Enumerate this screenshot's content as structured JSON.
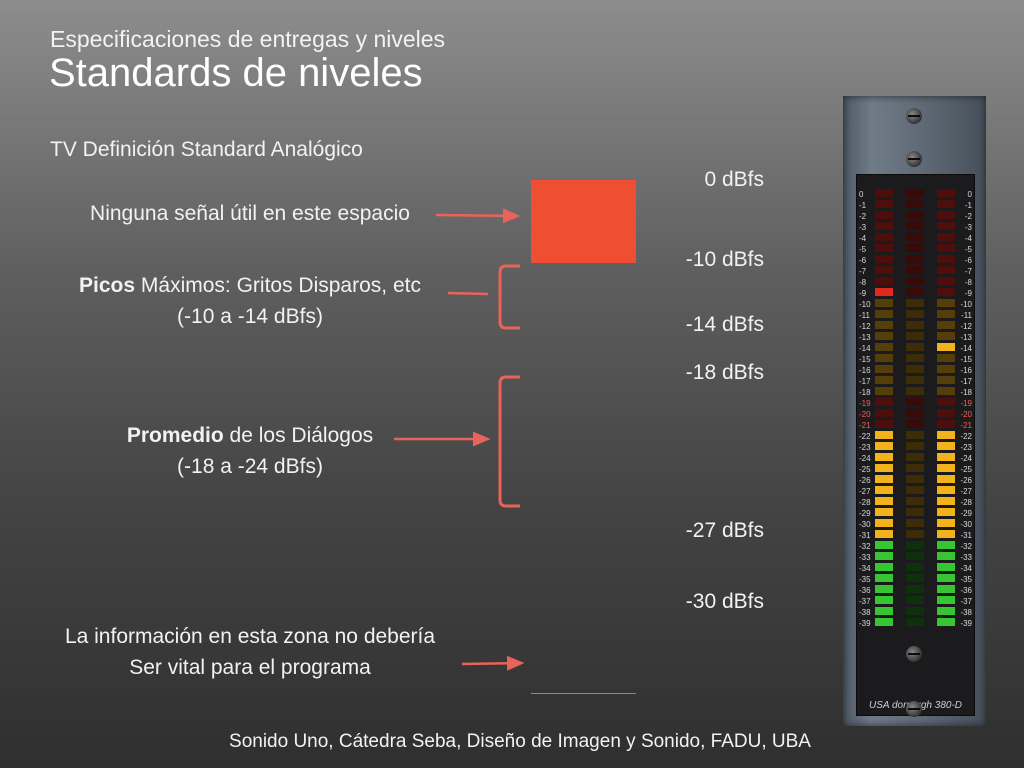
{
  "header": {
    "subtitle": "Especificaciones de entregas y niveles",
    "title": "Standards de niveles"
  },
  "section_label": "TV Definición Standard Analógico",
  "annotations": {
    "no_signal": "Ninguna señal útil en este espacio",
    "peaks_bold": "Picos",
    "peaks_rest": " Máximos: Gritos Disparos, etc",
    "peaks_range": "(-10 a -14 dBfs)",
    "dialog_bold": "Promedio",
    "dialog_rest": " de los Diálogos",
    "dialog_range": "(-18 a -24 dBfs)",
    "low_zone_line1": "La información en esta zona no debería",
    "low_zone_line2": "Ser vital para el programa"
  },
  "levels": {
    "l0": "0 dBfs",
    "l10": "-10 dBfs",
    "l14": "-14 dBfs",
    "l18": "-18 dBfs",
    "l27": "-27 dBfs",
    "l30": "-30 dBfs"
  },
  "meter": {
    "brand": "USA dorrough 380-D",
    "scale": [
      "0",
      "-1",
      "-2",
      "-3",
      "-4",
      "-5",
      "-6",
      "-7",
      "-8",
      "-9",
      "-10",
      "-11",
      "-12",
      "-13",
      "-14",
      "-15",
      "-16",
      "-17",
      "-18",
      "-19",
      "-20",
      "-21",
      "-22",
      "-23",
      "-24",
      "-25",
      "-26",
      "-27",
      "-28",
      "-29",
      "-30",
      "-31",
      "-32",
      "-33",
      "-34",
      "-35",
      "-36",
      "-37",
      "-38",
      "-39"
    ]
  },
  "colors": {
    "red_zone": "#ef4e33",
    "arrow": "#e8645a",
    "meter_red": "#e0281e",
    "meter_yellow": "#f2b21b",
    "meter_green": "#37c531"
  },
  "footer": "Sonido Uno, Cátedra Seba, Diseño de Imagen y Sonido, FADU, UBA"
}
